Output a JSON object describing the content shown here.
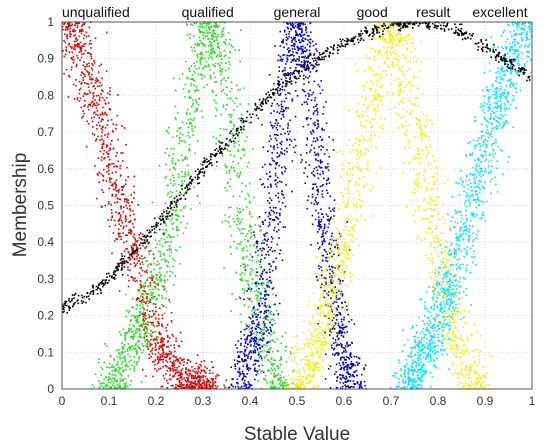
{
  "chart_data": {
    "type": "scatter",
    "title": "",
    "xlabel": "Stable Value",
    "ylabel": "Membership",
    "xlim": [
      0,
      1
    ],
    "ylim": [
      0,
      1
    ],
    "xticks": [
      "0",
      "0.1",
      "0.2",
      "0.3",
      "0.4",
      "0.5",
      "0.6",
      "0.7",
      "0.8",
      "0.9",
      "1"
    ],
    "yticks": [
      "0",
      "0.1",
      "0.2",
      "0.3",
      "0.4",
      "0.5",
      "0.6",
      "0.7",
      "0.8",
      "0.9",
      "1"
    ],
    "grid": true,
    "annotations": [
      {
        "text": "unqualified",
        "x": 0.0,
        "color": "#111111"
      },
      {
        "text": "qualified",
        "x": 0.31,
        "color": "#111111"
      },
      {
        "text": "general",
        "x": 0.5,
        "color": "#111111"
      },
      {
        "text": "good",
        "x": 0.66,
        "color": "#111111"
      },
      {
        "text": "result",
        "x": 0.79,
        "color": "#e23b3b"
      },
      {
        "text": "excellent",
        "x": 0.95,
        "color": "#111111"
      }
    ],
    "series": [
      {
        "color": "#e00000",
        "points": 1300,
        "spread": 0.03,
        "curve": [
          [
            0.0,
            1.0
          ],
          [
            0.02,
            0.98
          ],
          [
            0.05,
            0.88
          ],
          [
            0.08,
            0.76
          ],
          [
            0.1,
            0.63
          ],
          [
            0.12,
            0.52
          ],
          [
            0.15,
            0.38
          ],
          [
            0.18,
            0.25
          ],
          [
            0.2,
            0.14
          ],
          [
            0.23,
            0.06
          ],
          [
            0.27,
            0.02
          ],
          [
            0.32,
            0.0
          ]
        ]
      },
      {
        "color": "#22dd22",
        "points": 1500,
        "spread": 0.03,
        "curve": [
          [
            0.1,
            0.0
          ],
          [
            0.15,
            0.12
          ],
          [
            0.2,
            0.28
          ],
          [
            0.24,
            0.5
          ],
          [
            0.27,
            0.75
          ],
          [
            0.3,
            0.95
          ],
          [
            0.31,
            1.0
          ],
          [
            0.33,
            0.95
          ],
          [
            0.36,
            0.72
          ],
          [
            0.38,
            0.5
          ],
          [
            0.41,
            0.28
          ],
          [
            0.44,
            0.1
          ],
          [
            0.47,
            0.0
          ]
        ]
      },
      {
        "color": "#0000cc",
        "points": 1500,
        "spread": 0.025,
        "curve": [
          [
            0.38,
            0.0
          ],
          [
            0.42,
            0.2
          ],
          [
            0.45,
            0.52
          ],
          [
            0.48,
            0.88
          ],
          [
            0.5,
            1.0
          ],
          [
            0.52,
            0.88
          ],
          [
            0.55,
            0.52
          ],
          [
            0.58,
            0.22
          ],
          [
            0.6,
            0.08
          ],
          [
            0.62,
            0.0
          ]
        ]
      },
      {
        "color": "#f0f000",
        "points": 1500,
        "spread": 0.03,
        "curve": [
          [
            0.5,
            0.0
          ],
          [
            0.55,
            0.15
          ],
          [
            0.6,
            0.4
          ],
          [
            0.65,
            0.72
          ],
          [
            0.69,
            0.96
          ],
          [
            0.7,
            1.0
          ],
          [
            0.72,
            0.94
          ],
          [
            0.75,
            0.72
          ],
          [
            0.79,
            0.44
          ],
          [
            0.83,
            0.2
          ],
          [
            0.86,
            0.06
          ],
          [
            0.88,
            0.0
          ]
        ]
      },
      {
        "color": "#00e5ff",
        "points": 1300,
        "spread": 0.03,
        "curve": [
          [
            0.73,
            0.0
          ],
          [
            0.78,
            0.12
          ],
          [
            0.83,
            0.3
          ],
          [
            0.88,
            0.55
          ],
          [
            0.92,
            0.75
          ],
          [
            0.96,
            0.92
          ],
          [
            0.99,
            1.0
          ]
        ]
      },
      {
        "color": "#000000",
        "points": 900,
        "spread": 0.008,
        "curve": [
          [
            0.0,
            0.22
          ],
          [
            0.05,
            0.25
          ],
          [
            0.1,
            0.3
          ],
          [
            0.15,
            0.37
          ],
          [
            0.2,
            0.44
          ],
          [
            0.25,
            0.52
          ],
          [
            0.3,
            0.6
          ],
          [
            0.35,
            0.67
          ],
          [
            0.4,
            0.74
          ],
          [
            0.45,
            0.81
          ],
          [
            0.5,
            0.86
          ],
          [
            0.55,
            0.9
          ],
          [
            0.6,
            0.94
          ],
          [
            0.65,
            0.97
          ],
          [
            0.7,
            0.99
          ],
          [
            0.75,
            1.0
          ],
          [
            0.8,
            0.995
          ],
          [
            0.85,
            0.97
          ],
          [
            0.9,
            0.93
          ],
          [
            0.95,
            0.89
          ],
          [
            1.0,
            0.85
          ]
        ]
      }
    ]
  }
}
